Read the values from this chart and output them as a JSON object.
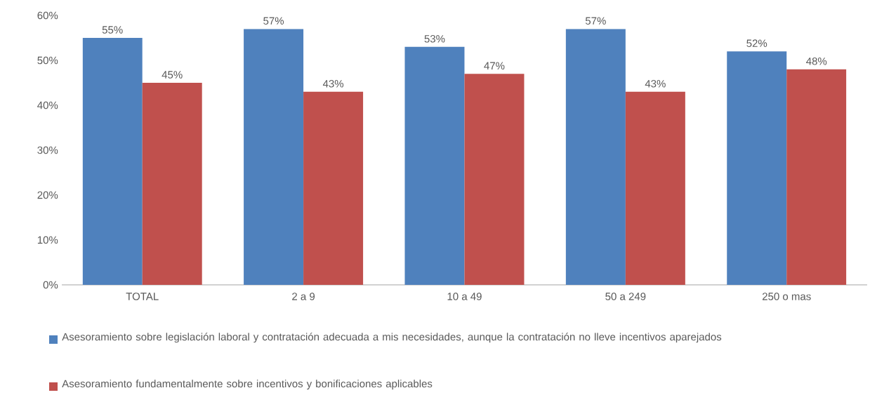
{
  "chart_data": {
    "type": "bar",
    "categories": [
      "TOTAL",
      "2 a 9",
      "10 a 49",
      "50 a 249",
      "250 o mas"
    ],
    "series": [
      {
        "name": "Asesoramiento sobre legislación laboral y contratación adecuada a mis necesidades, aunque la contratación no lleve incentivos aparejados",
        "color": "#4f81bd",
        "values": [
          55,
          57,
          53,
          57,
          52
        ],
        "value_labels": [
          "55%",
          "57%",
          "53%",
          "57%",
          "52%"
        ]
      },
      {
        "name": "Asesoramiento fundamentalmente sobre incentivos y bonificaciones aplicables",
        "color": "#c0504d",
        "values": [
          45,
          43,
          47,
          43,
          48
        ],
        "value_labels": [
          "45%",
          "43%",
          "47%",
          "43%",
          "48%"
        ]
      }
    ],
    "ylim": [
      0,
      60
    ],
    "yticks": [
      {
        "value": 0,
        "label": "0%"
      },
      {
        "value": 10,
        "label": "10%"
      },
      {
        "value": 20,
        "label": "20%"
      },
      {
        "value": 30,
        "label": "30%"
      },
      {
        "value": 40,
        "label": "40%"
      },
      {
        "value": 50,
        "label": "50%"
      },
      {
        "value": 60,
        "label": "60%"
      }
    ],
    "grid": false,
    "legend": "bottom"
  }
}
